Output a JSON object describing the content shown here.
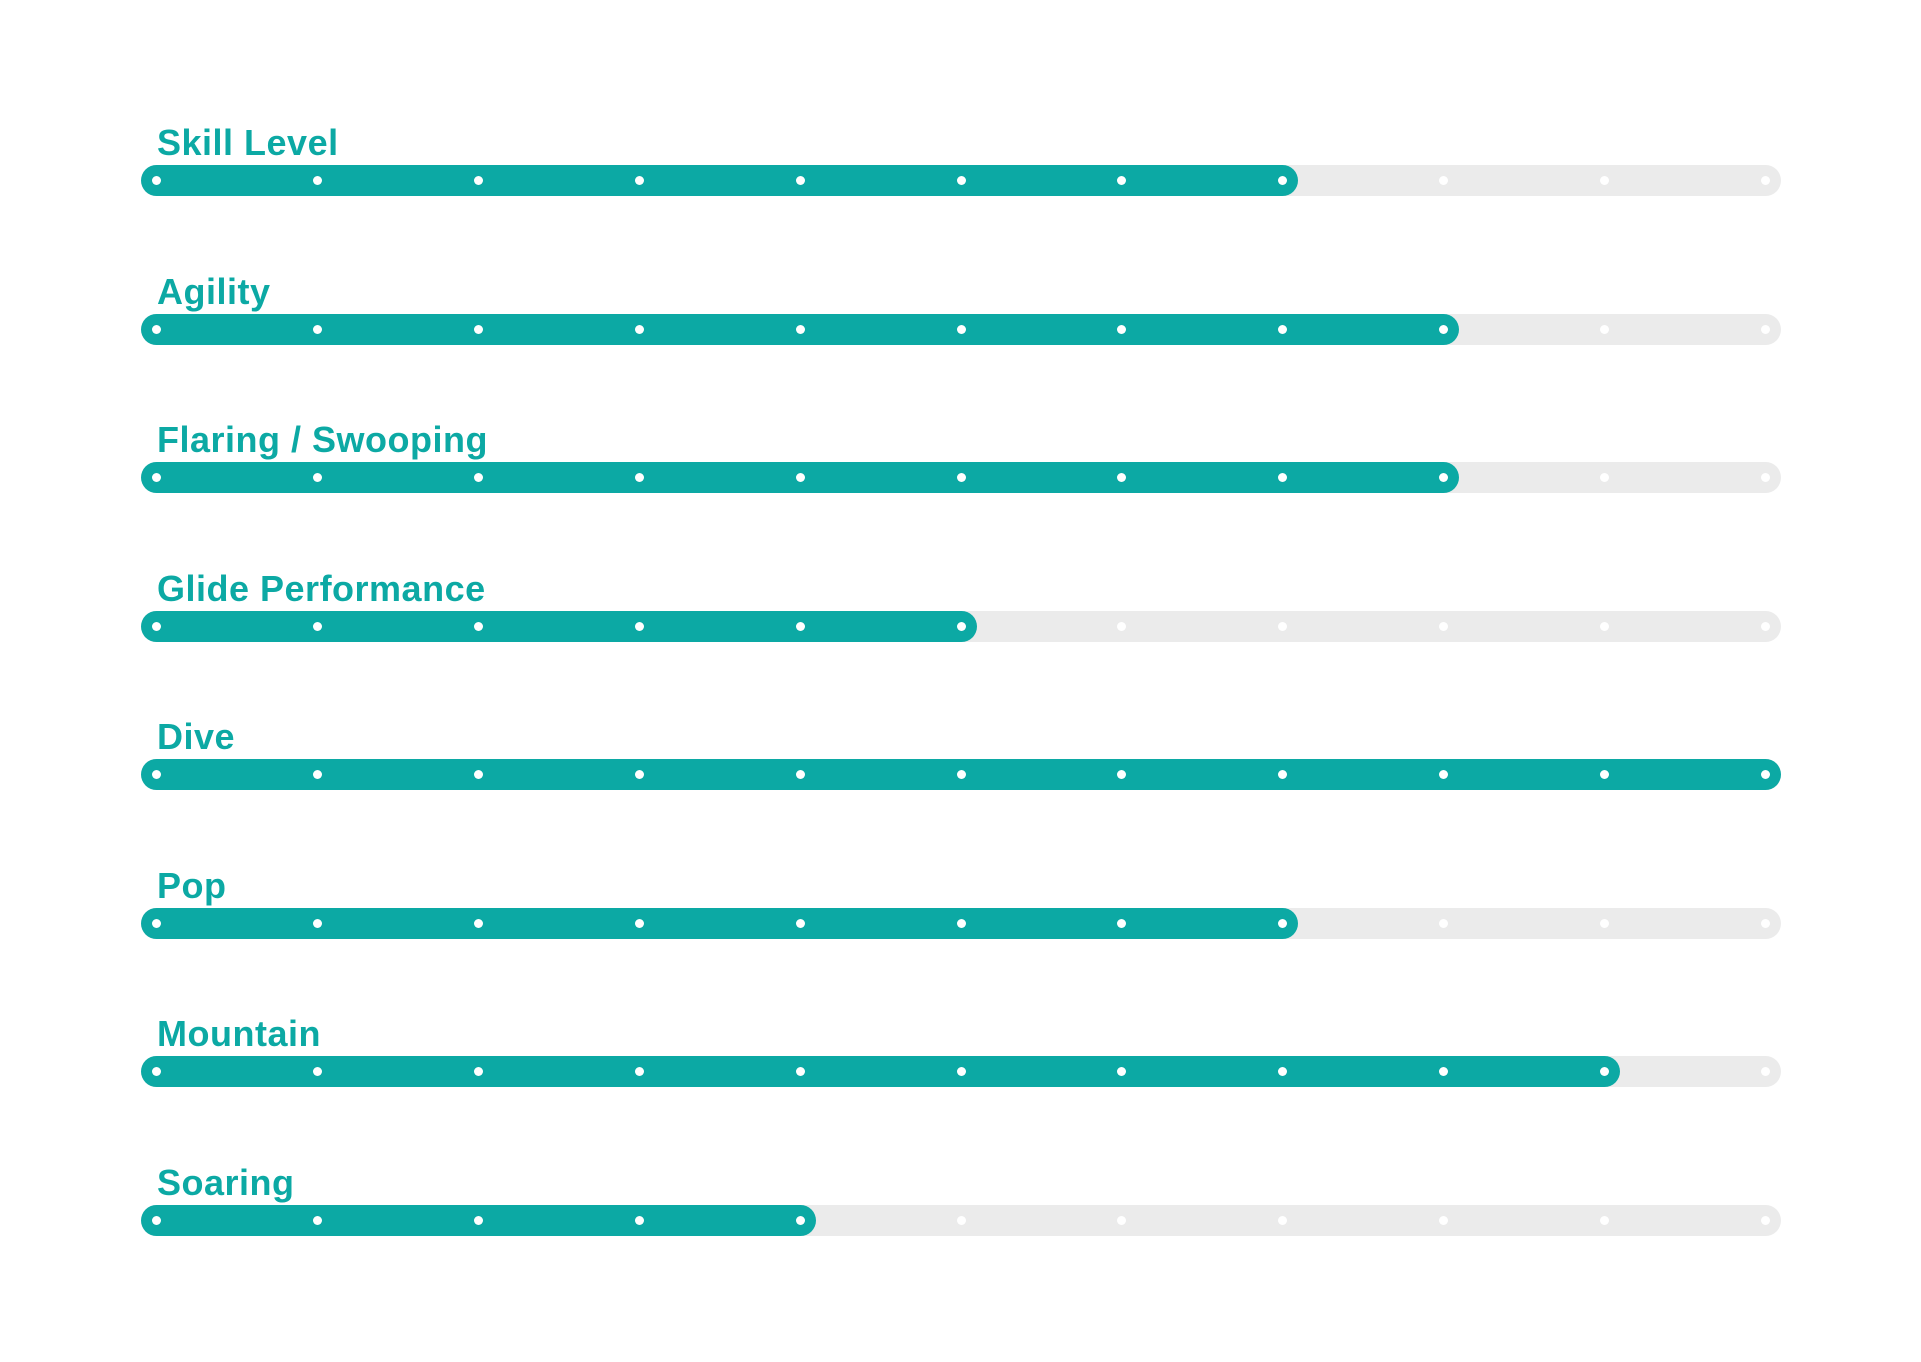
{
  "page": {
    "background": "#ffffff"
  },
  "chart_data": {
    "type": "bar",
    "orientation": "horizontal",
    "title": "",
    "xlabel": "",
    "ylabel": "",
    "legend": "none",
    "grid": false,
    "scale": {
      "min": 0,
      "max": 10,
      "tick_dots_per_bar": 11
    },
    "categories": [
      "Skill Level",
      "Agility",
      "Flaring / Swooping",
      "Glide Performance",
      "Dive",
      "Pop",
      "Mountain",
      "Soaring"
    ],
    "values": [
      7,
      8,
      8,
      5,
      10,
      7,
      9,
      4
    ],
    "rows": [
      {
        "label": "Skill Level",
        "value": 7
      },
      {
        "label": "Agility",
        "value": 8
      },
      {
        "label": "Flaring / Swooping",
        "value": 8
      },
      {
        "label": "Glide Performance",
        "value": 5
      },
      {
        "label": "Dive",
        "value": 10
      },
      {
        "label": "Pop",
        "value": 7
      },
      {
        "label": "Mountain",
        "value": 9
      },
      {
        "label": "Soaring",
        "value": 4
      }
    ],
    "colors": {
      "fill": "#0ca9a4",
      "track": "#ebebeb",
      "dot": "#ffffff",
      "label": "#0ca9a4"
    }
  }
}
